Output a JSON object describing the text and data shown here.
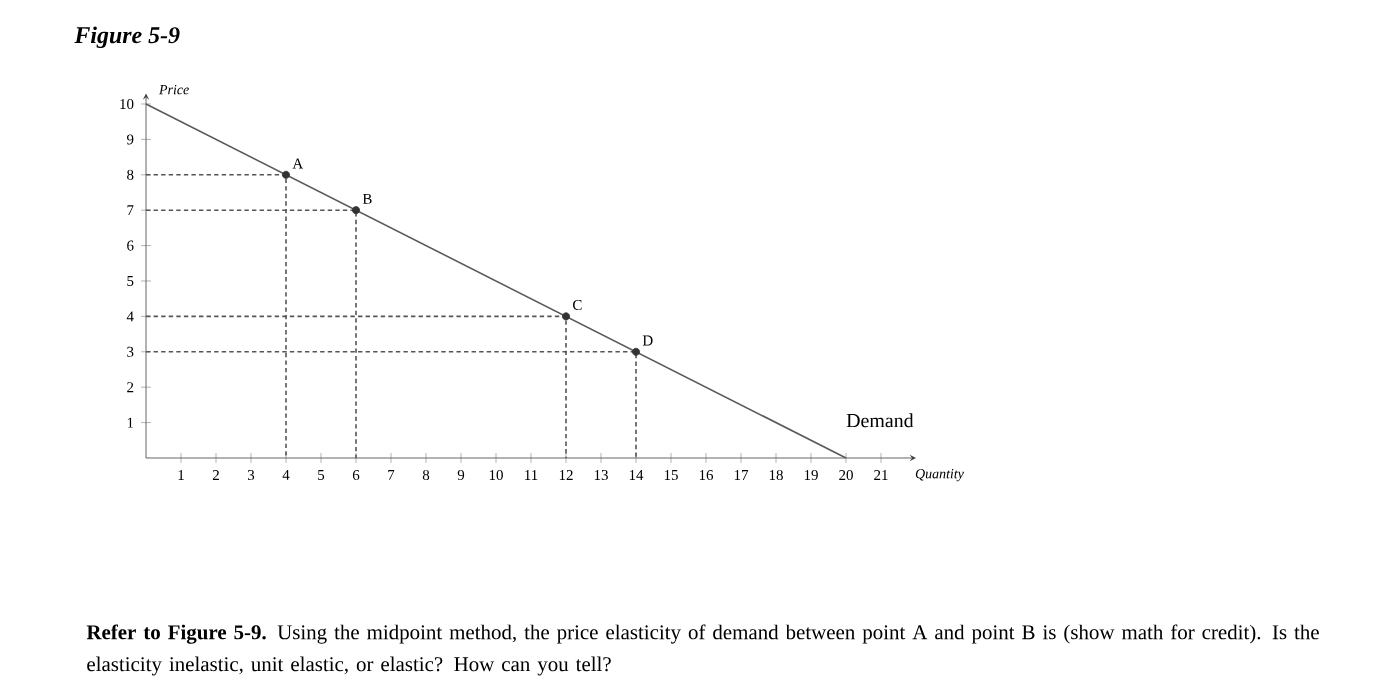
{
  "chart_data": {
    "type": "line",
    "title": "Figure 5-9",
    "xlabel": "Quantity",
    "ylabel": "Price",
    "xlim": [
      0,
      22
    ],
    "ylim": [
      0,
      10.3
    ],
    "xticks": [
      1,
      2,
      3,
      4,
      5,
      6,
      7,
      8,
      9,
      10,
      11,
      12,
      13,
      14,
      15,
      16,
      17,
      18,
      19,
      20,
      21
    ],
    "yticks": [
      1,
      2,
      3,
      4,
      5,
      6,
      7,
      8,
      9,
      10
    ],
    "series": [
      {
        "name": "Demand",
        "color": "#5a5a5a",
        "x": [
          0,
          20
        ],
        "values": [
          10,
          0
        ],
        "marker": "none",
        "line_style": "solid"
      },
      {
        "type": "line",
        "color": "#555555",
        "x": [
          0,
          4,
          4
        ],
        "values": [
          8,
          8,
          0
        ],
        "marker": "none",
        "line_style": "dashed"
      },
      {
        "type": "line",
        "color": "#555555",
        "x": [
          0,
          6,
          6
        ],
        "values": [
          7,
          7,
          0
        ],
        "marker": "none",
        "line_style": "dashed"
      },
      {
        "type": "line",
        "color": "#555555",
        "x": [
          0,
          12,
          12
        ],
        "values": [
          4,
          4,
          0
        ],
        "marker": "none",
        "line_style": "dashed"
      },
      {
        "type": "line",
        "color": "#555555",
        "x": [
          0,
          14,
          14
        ],
        "values": [
          3,
          3,
          0
        ],
        "marker": "none",
        "line_style": "dashed"
      },
      {
        "type": "scatter",
        "color": "#333333",
        "x": [
          4,
          6,
          12,
          14
        ],
        "values": [
          8,
          7,
          4,
          3
        ],
        "marker": "circle"
      }
    ],
    "annotations": [
      {
        "text": "A",
        "x": 4,
        "y": 8
      },
      {
        "text": "B",
        "x": 6,
        "y": 7
      },
      {
        "text": "C",
        "x": 12,
        "y": 4
      },
      {
        "text": "D",
        "x": 14,
        "y": 3
      },
      "**Refer to Figure 5-9.** Using the midpoint method, the price elasticity of demand between point A and point B is (show math for credit). Is the elasticity inelastic, unit elastic, or elastic? How can you tell?"
    ]
  }
}
